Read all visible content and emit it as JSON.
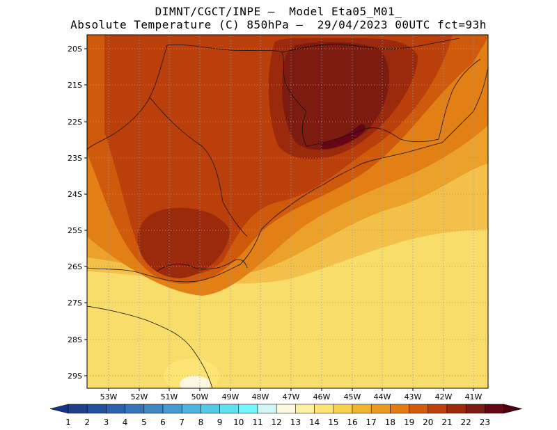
{
  "header": {
    "line1": "DIMNT/CGCT/INPE –  Model Eta05_M01_",
    "line2": "Absolute Temperature (C) 850hPa –  29/04/2023 00UTC fct=93h"
  },
  "map": {
    "lat_labels": [
      "20S",
      "21S",
      "22S",
      "23S",
      "24S",
      "25S",
      "26S",
      "27S",
      "28S",
      "29S"
    ],
    "lon_labels": [
      "53W",
      "52W",
      "51W",
      "50W",
      "49W",
      "48W",
      "47W",
      "46W",
      "45W",
      "44W",
      "43W",
      "42W",
      "41W"
    ],
    "lon_range": [
      -53.8,
      -40.6
    ],
    "lat_range": [
      -29.4,
      -19.75
    ]
  },
  "colorbar": {
    "labels": [
      "1",
      "2",
      "3",
      "4",
      "5",
      "6",
      "7",
      "8",
      "9",
      "10",
      "11",
      "12",
      "13",
      "14",
      "15",
      "16",
      "17",
      "18",
      "19",
      "20",
      "21",
      "22",
      "23"
    ],
    "colors": [
      "#1f3f8a",
      "#20509f",
      "#2a62ad",
      "#3574b8",
      "#3f86c3",
      "#469ad0",
      "#4cb3de",
      "#52c9e8",
      "#5fe1f2",
      "#74f7fc",
      "#d2f6f6",
      "#fdf6e0",
      "#fdf0a0",
      "#fde474",
      "#f8d04e",
      "#f0b52f",
      "#ea9a1c",
      "#e27c10",
      "#d35c09",
      "#bd400a",
      "#9c2b0c",
      "#7e1b10",
      "#650515"
    ],
    "under_color": "#173383",
    "over_color": "#4d0010"
  }
}
